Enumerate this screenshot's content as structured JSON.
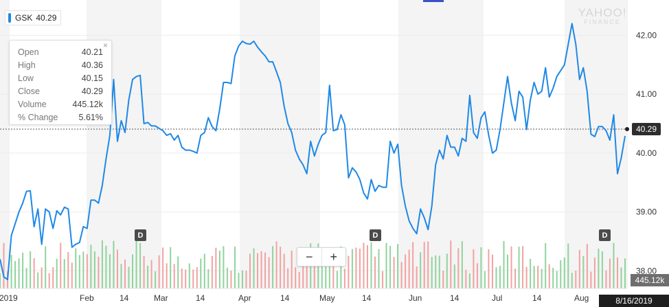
{
  "legend": {
    "symbol": "GSK",
    "value": "40.29",
    "color": "#1e88e5"
  },
  "tooltip": {
    "rows": [
      {
        "label": "Open",
        "value": "40.21"
      },
      {
        "label": "High",
        "value": "40.36"
      },
      {
        "label": "Low",
        "value": "40.15"
      },
      {
        "label": "Close",
        "value": "40.29"
      },
      {
        "label": "Volume",
        "value": "445.12k"
      },
      {
        "label": "% Change",
        "value": "5.61%"
      }
    ],
    "close_glyph": "×"
  },
  "watermark": {
    "line1": "YAHOO!",
    "line2": "FINANCE"
  },
  "dividend_marker": "D",
  "zoom": {
    "minus": "−",
    "plus": "+"
  },
  "crosshair": {
    "price": "40.29",
    "volume": "445.12k",
    "date": "8/16/2019"
  },
  "chart_data": {
    "type": "line",
    "symbol": "GSK",
    "ylim": [
      37.7,
      42.6
    ],
    "y_ticks": [
      38.0,
      39.0,
      40.0,
      41.0,
      42.0
    ],
    "y_tick_labels": [
      "38.00",
      "39.00",
      "40.00",
      "41.00",
      "42.00"
    ],
    "x_tick_labels": [
      "2019",
      "Feb",
      "14",
      "Mar",
      "14",
      "Apr",
      "14",
      "May",
      "14",
      "Jun",
      "14",
      "Jul",
      "14",
      "Aug"
    ],
    "series": [
      {
        "values": [
          38.2,
          37.9,
          37.85,
          38.6,
          38.8,
          39.0,
          39.15,
          39.35,
          39.36,
          38.75,
          39.05,
          38.45,
          39.05,
          39.0,
          38.72,
          39.02,
          38.95,
          39.08,
          39.05,
          38.4,
          38.45,
          38.48,
          38.75,
          38.72,
          39.2,
          39.2,
          39.15,
          39.45,
          39.9,
          40.3,
          41.25,
          40.2,
          40.55,
          40.35,
          40.9,
          41.25,
          41.3,
          41.32,
          40.5,
          40.52,
          40.46,
          40.46,
          40.42,
          40.38,
          40.3,
          40.33,
          40.22,
          40.3,
          40.1,
          40.05,
          40.05,
          40.03,
          40.0,
          40.3,
          40.35,
          40.6,
          40.45,
          40.38,
          40.75,
          41.2,
          41.2,
          41.18,
          41.65,
          41.82,
          41.9,
          41.86,
          41.85,
          41.9,
          41.8,
          41.72,
          41.65,
          41.55,
          41.55,
          41.38,
          41.2,
          40.8,
          40.5,
          40.35,
          40.05,
          39.9,
          39.8,
          39.65,
          40.2,
          39.95,
          40.15,
          40.3,
          40.35,
          41.15,
          40.38,
          40.4,
          40.65,
          40.48,
          39.58,
          39.75,
          39.68,
          39.55,
          39.32,
          39.22,
          39.55,
          39.35,
          39.45,
          39.42,
          39.42,
          40.2,
          40.0,
          40.15,
          39.45,
          39.1,
          38.85,
          38.72,
          38.63,
          39.05,
          38.9,
          38.7,
          39.1,
          39.8,
          40.05,
          39.9,
          40.3,
          40.1,
          40.1,
          39.95,
          40.25,
          40.2,
          40.98,
          40.35,
          40.25,
          40.6,
          40.7,
          40.3,
          40.0,
          40.05,
          40.4,
          40.85,
          41.3,
          40.85,
          40.55,
          41.05,
          40.95,
          40.4,
          40.9,
          41.2,
          41.0,
          41.05,
          41.45,
          40.95,
          41.1,
          41.3,
          41.4,
          41.5,
          41.85,
          42.2,
          41.85,
          41.25,
          41.45,
          41.05,
          40.32,
          40.28,
          40.45,
          40.45,
          40.38,
          40.22,
          40.65,
          39.65,
          39.92,
          40.29
        ]
      }
    ],
    "dividend_indices": [
      42,
      103,
      165
    ],
    "volume": {
      "label": "Volume",
      "last": "445.12k"
    },
    "grid": true,
    "legend_position": "top-left"
  }
}
